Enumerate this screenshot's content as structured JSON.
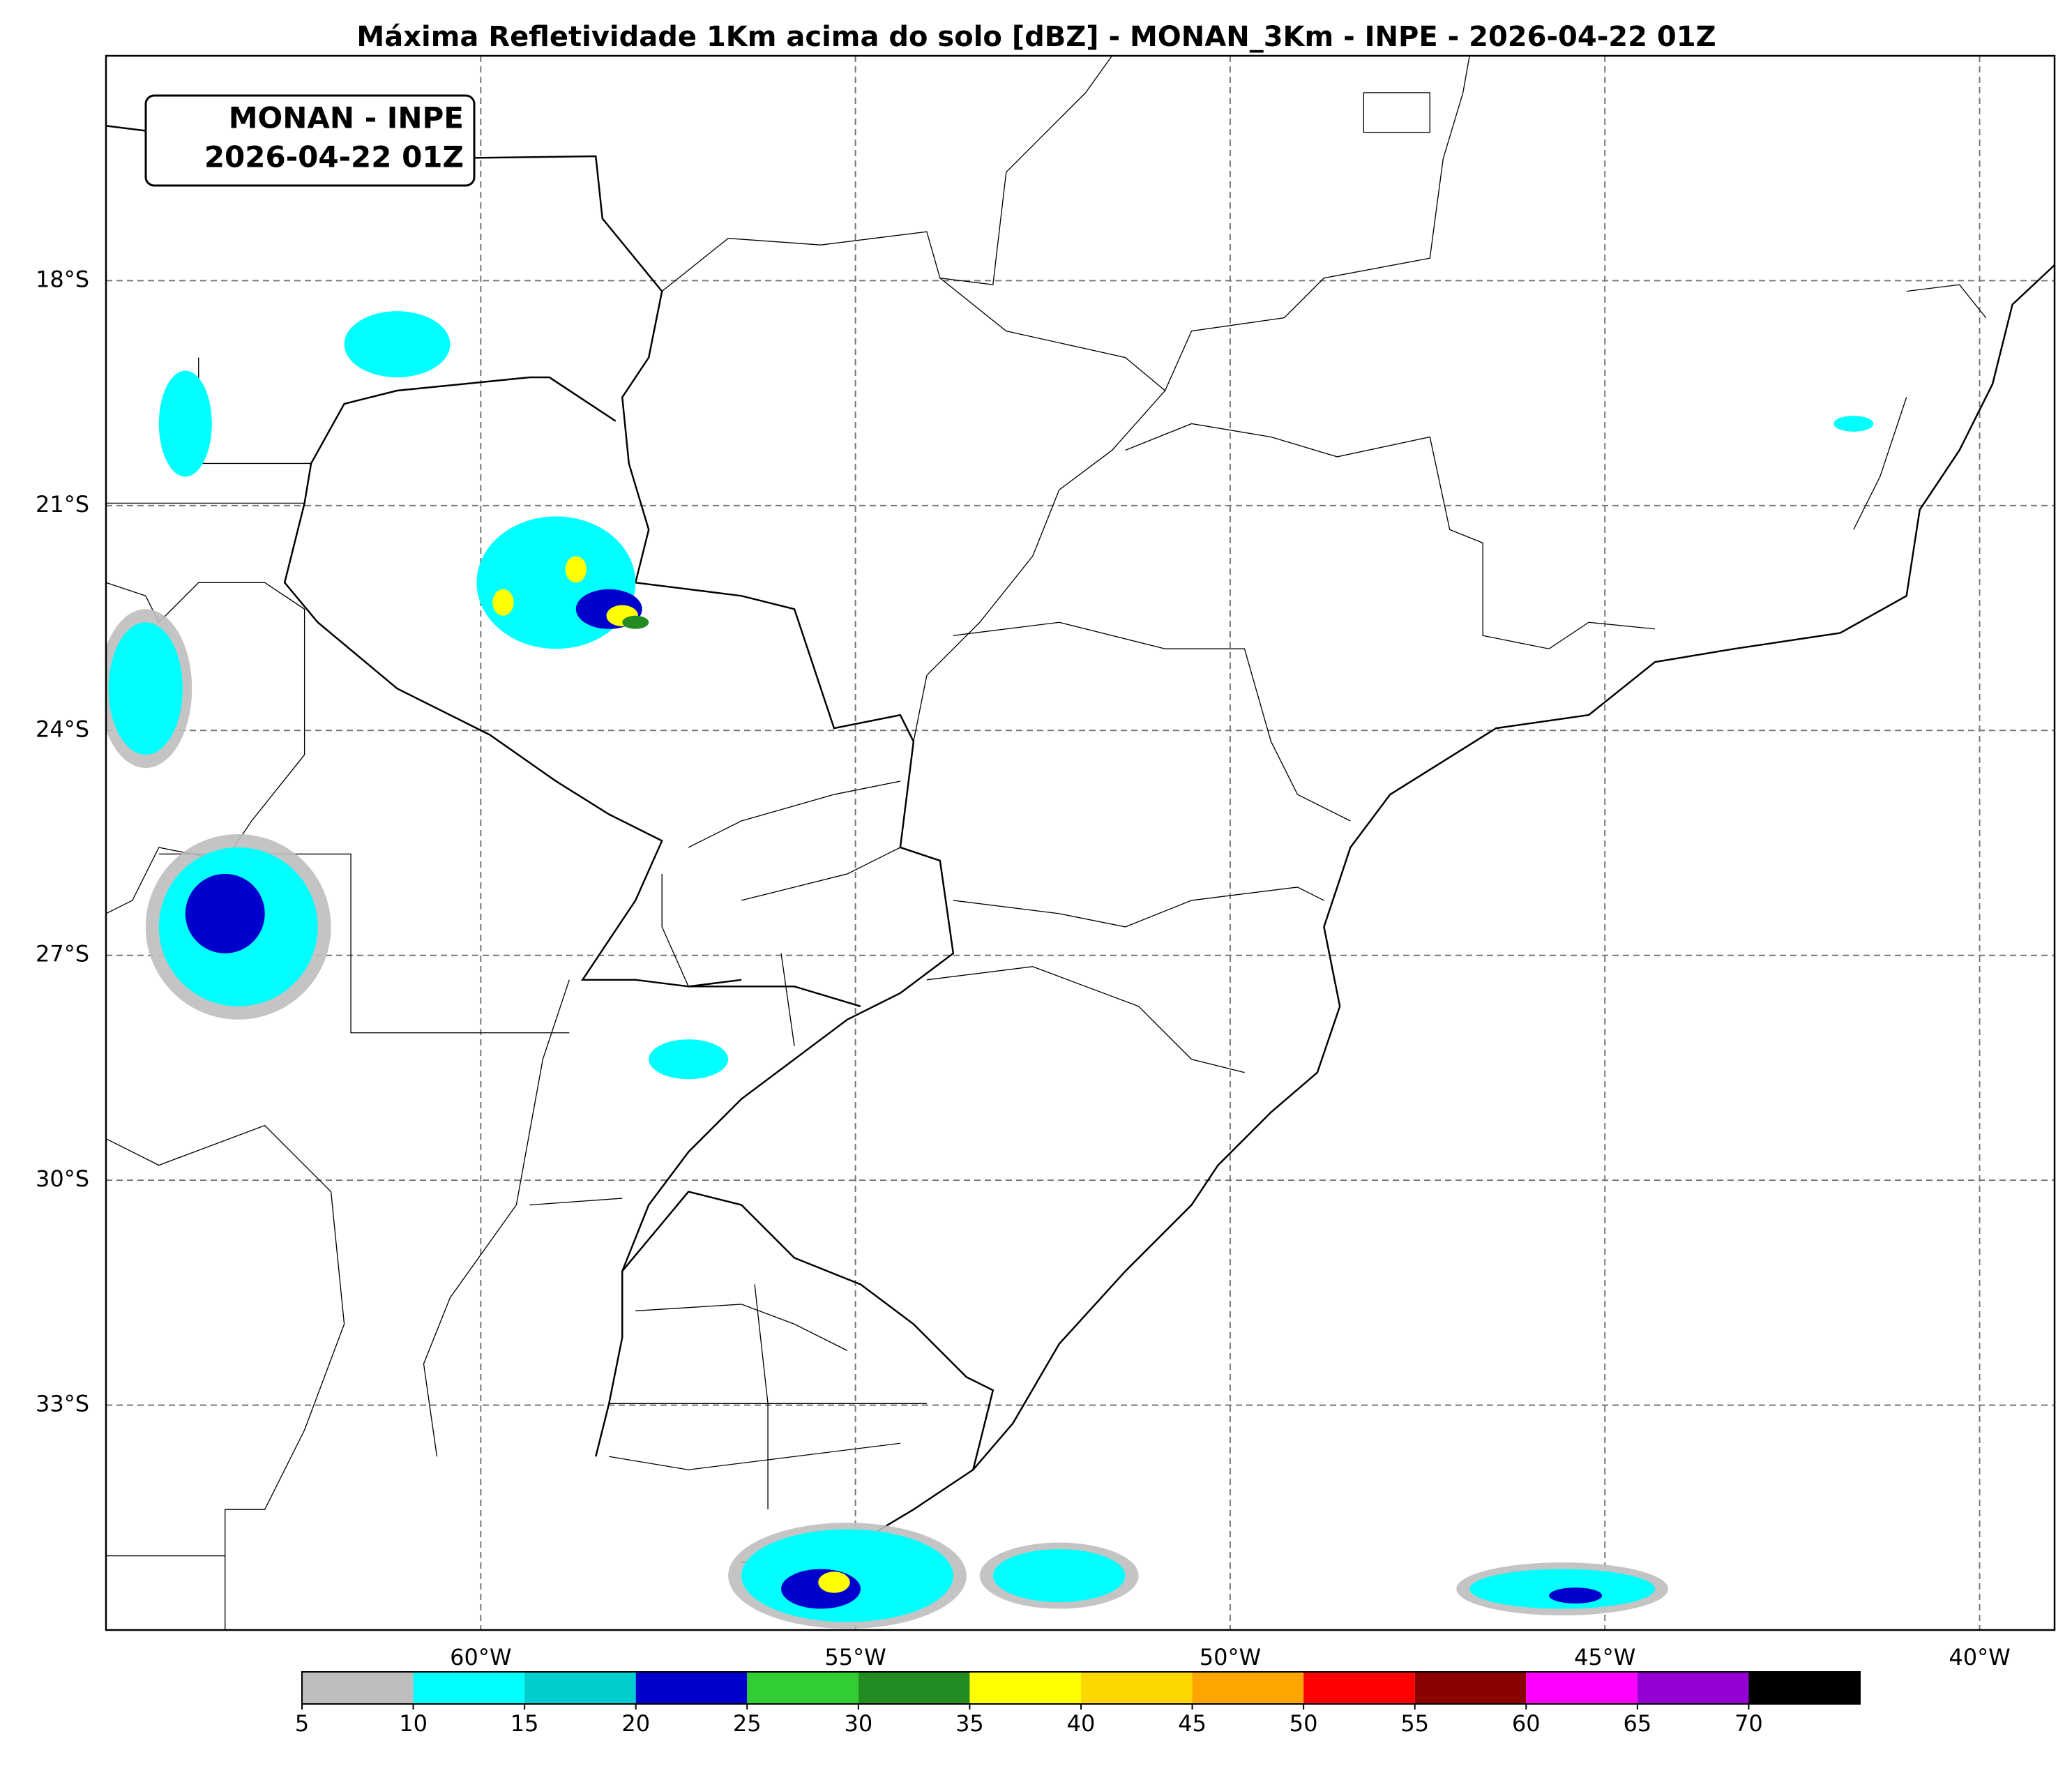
{
  "map": {
    "title": "Máxima Refletividade 1Km acima do solo [dBZ] - MONAN_3Km - INPE - 2026-04-22 01Z",
    "label_box": [
      "MONAN - INPE",
      "2026-04-22 01Z"
    ],
    "xlim": [
      -65,
      -39
    ],
    "ylim": [
      -36,
      -15
    ],
    "xticks": [
      {
        "value": -60,
        "label": "60°W"
      },
      {
        "value": -55,
        "label": "55°W"
      },
      {
        "value": -50,
        "label": "50°W"
      },
      {
        "value": -45,
        "label": "45°W"
      },
      {
        "value": -40,
        "label": "40°W"
      }
    ],
    "yticks": [
      {
        "value": -18,
        "label": "18°S"
      },
      {
        "value": -21,
        "label": "21°S"
      },
      {
        "value": -24,
        "label": "24°S"
      },
      {
        "value": -27,
        "label": "27°S"
      },
      {
        "value": -30,
        "label": "30°S"
      },
      {
        "value": -33,
        "label": "33°S"
      }
    ],
    "grid": true,
    "colorbar": {
      "levels": [
        5,
        10,
        15,
        20,
        25,
        30,
        35,
        40,
        45,
        50,
        55,
        60,
        65,
        70
      ],
      "colors": [
        "#bebebe",
        "#00ffff",
        "#00cdcd",
        "#0000cd",
        "#32cd32",
        "#228b22",
        "#ffff00",
        "#ffd700",
        "#ffa500",
        "#ff0000",
        "#8b0000",
        "#ff00ff",
        "#9400d3",
        "#000000"
      ]
    }
  }
}
